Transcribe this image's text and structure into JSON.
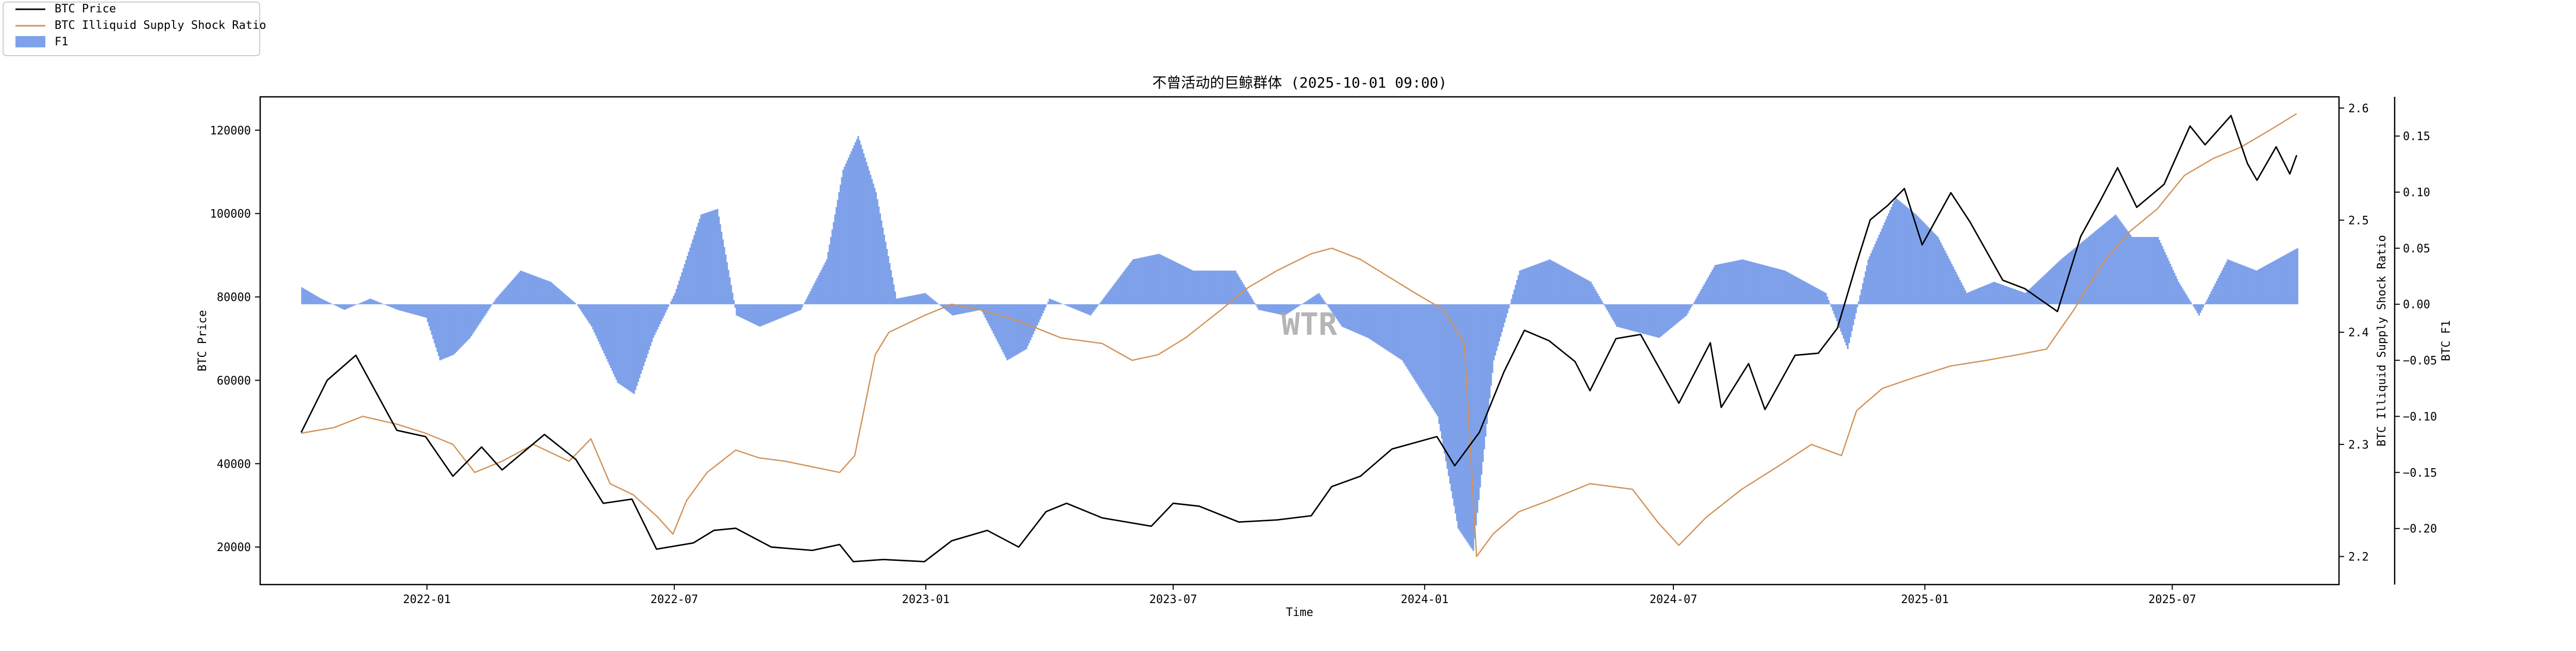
{
  "chart_data": {
    "type": "line",
    "title": "不曾活动的巨鲸群体 (2025-10-01 09:00)",
    "xlabel": "Time",
    "ylabel_left": "BTC Price",
    "ylabel_right1": "BTC Illiquid Supply Shock Ratio",
    "ylabel_right2": "BTC F1",
    "watermark": "WTR",
    "x_ticks": [
      "2022-01",
      "2022-07",
      "2023-01",
      "2023-07",
      "2024-01",
      "2024-07",
      "2025-01",
      "2025-07"
    ],
    "x_range": [
      "2021-09-01",
      "2025-10-31"
    ],
    "y_left": {
      "range": [
        11000,
        128000
      ],
      "ticks": [
        20000,
        40000,
        60000,
        80000,
        100000,
        120000
      ],
      "tick_labels": [
        "20000",
        "40000",
        "60000",
        "80000",
        "100000",
        "120000"
      ]
    },
    "y_right1": {
      "range": [
        2.175,
        2.61
      ],
      "ticks": [
        2.2,
        2.3,
        2.4,
        2.5,
        2.6
      ],
      "tick_labels": [
        "2.2",
        "2.3",
        "2.4",
        "2.5",
        "2.6"
      ]
    },
    "y_right2": {
      "range": [
        -0.25,
        0.185
      ],
      "ticks": [
        -0.2,
        -0.15,
        -0.1,
        -0.05,
        0.0,
        0.05,
        0.1,
        0.15
      ],
      "tick_labels": [
        "−0.20",
        "−0.15",
        "−0.10",
        "−0.05",
        "0.00",
        "0.05",
        "0.10",
        "0.15"
      ]
    },
    "legend": {
      "placement": "top-left",
      "entries": [
        {
          "label": "BTC Price",
          "kind": "line"
        },
        {
          "label": "BTC Illiquid Supply Shock Ratio",
          "kind": "line"
        },
        {
          "label": "F1",
          "kind": "patch"
        }
      ]
    },
    "colors": {
      "price": "#000000",
      "ratio": "#d2935a",
      "f1": "#7ea1ea"
    },
    "series": [
      {
        "name": "BTC Price",
        "axis": "left",
        "points": [
          [
            "2021-10-01",
            47500
          ],
          [
            "2021-10-20",
            60000
          ],
          [
            "2021-11-10",
            66000
          ],
          [
            "2021-11-25",
            57000
          ],
          [
            "2021-12-10",
            48000
          ],
          [
            "2021-12-31",
            46500
          ],
          [
            "2022-01-20",
            37000
          ],
          [
            "2022-02-10",
            44000
          ],
          [
            "2022-02-25",
            38500
          ],
          [
            "2022-03-28",
            47000
          ],
          [
            "2022-04-20",
            41000
          ],
          [
            "2022-05-10",
            30500
          ],
          [
            "2022-05-31",
            31500
          ],
          [
            "2022-06-18",
            19500
          ],
          [
            "2022-07-15",
            21000
          ],
          [
            "2022-07-30",
            24000
          ],
          [
            "2022-08-15",
            24500
          ],
          [
            "2022-09-10",
            20000
          ],
          [
            "2022-10-10",
            19200
          ],
          [
            "2022-10-30",
            20600
          ],
          [
            "2022-11-09",
            16500
          ],
          [
            "2022-12-01",
            17000
          ],
          [
            "2022-12-31",
            16500
          ],
          [
            "2023-01-20",
            21500
          ],
          [
            "2023-02-15",
            24000
          ],
          [
            "2023-03-10",
            20000
          ],
          [
            "2023-03-30",
            28500
          ],
          [
            "2023-04-14",
            30500
          ],
          [
            "2023-05-10",
            27000
          ],
          [
            "2023-06-15",
            25000
          ],
          [
            "2023-07-01",
            30500
          ],
          [
            "2023-07-20",
            29800
          ],
          [
            "2023-08-18",
            26000
          ],
          [
            "2023-09-15",
            26500
          ],
          [
            "2023-10-10",
            27500
          ],
          [
            "2023-10-25",
            34500
          ],
          [
            "2023-11-15",
            37000
          ],
          [
            "2023-12-08",
            43500
          ],
          [
            "2024-01-10",
            46500
          ],
          [
            "2024-01-23",
            39500
          ],
          [
            "2024-02-10",
            47500
          ],
          [
            "2024-02-28",
            62000
          ],
          [
            "2024-03-14",
            72000
          ],
          [
            "2024-04-01",
            69500
          ],
          [
            "2024-04-20",
            64500
          ],
          [
            "2024-05-01",
            57500
          ],
          [
            "2024-05-20",
            70000
          ],
          [
            "2024-06-07",
            71000
          ],
          [
            "2024-07-05",
            54500
          ],
          [
            "2024-07-28",
            69000
          ],
          [
            "2024-08-05",
            53500
          ],
          [
            "2024-08-25",
            64000
          ],
          [
            "2024-09-06",
            53000
          ],
          [
            "2024-09-28",
            66000
          ],
          [
            "2024-10-15",
            66500
          ],
          [
            "2024-10-29",
            72500
          ],
          [
            "2024-11-12",
            88000
          ],
          [
            "2024-11-22",
            98500
          ],
          [
            "2024-12-05",
            102000
          ],
          [
            "2024-12-17",
            106000
          ],
          [
            "2024-12-30",
            92500
          ],
          [
            "2025-01-20",
            105000
          ],
          [
            "2025-02-03",
            98000
          ],
          [
            "2025-02-27",
            84000
          ],
          [
            "2025-03-15",
            82000
          ],
          [
            "2025-04-08",
            76500
          ],
          [
            "2025-04-25",
            94500
          ],
          [
            "2025-05-10",
            103500
          ],
          [
            "2025-05-22",
            111000
          ],
          [
            "2025-06-05",
            101500
          ],
          [
            "2025-06-25",
            107000
          ],
          [
            "2025-07-14",
            121000
          ],
          [
            "2025-07-25",
            116500
          ],
          [
            "2025-08-13",
            123500
          ],
          [
            "2025-08-25",
            112000
          ],
          [
            "2025-09-01",
            108000
          ],
          [
            "2025-09-15",
            116000
          ],
          [
            "2025-09-25",
            109500
          ],
          [
            "2025-09-30",
            114000
          ]
        ]
      },
      {
        "name": "BTC Illiquid Supply Shock Ratio",
        "axis": "right1",
        "points": [
          [
            "2021-10-01",
            2.31
          ],
          [
            "2021-10-25",
            2.315
          ],
          [
            "2021-11-15",
            2.325
          ],
          [
            "2021-12-10",
            2.318
          ],
          [
            "2021-12-31",
            2.31
          ],
          [
            "2022-01-20",
            2.3
          ],
          [
            "2022-02-05",
            2.275
          ],
          [
            "2022-02-25",
            2.285
          ],
          [
            "2022-03-20",
            2.3
          ],
          [
            "2022-04-15",
            2.285
          ],
          [
            "2022-05-01",
            2.305
          ],
          [
            "2022-05-15",
            2.265
          ],
          [
            "2022-06-01",
            2.255
          ],
          [
            "2022-06-19",
            2.235
          ],
          [
            "2022-06-30",
            2.22
          ],
          [
            "2022-07-10",
            2.25
          ],
          [
            "2022-07-25",
            2.275
          ],
          [
            "2022-08-15",
            2.295
          ],
          [
            "2022-09-01",
            2.288
          ],
          [
            "2022-09-20",
            2.285
          ],
          [
            "2022-10-10",
            2.28
          ],
          [
            "2022-10-30",
            2.275
          ],
          [
            "2022-11-10",
            2.29
          ],
          [
            "2022-11-25",
            2.38
          ],
          [
            "2022-12-05",
            2.4
          ],
          [
            "2022-12-31",
            2.415
          ],
          [
            "2023-01-20",
            2.425
          ],
          [
            "2023-02-10",
            2.42
          ],
          [
            "2023-03-10",
            2.41
          ],
          [
            "2023-04-10",
            2.395
          ],
          [
            "2023-05-10",
            2.39
          ],
          [
            "2023-06-01",
            2.375
          ],
          [
            "2023-06-20",
            2.38
          ],
          [
            "2023-07-10",
            2.395
          ],
          [
            "2023-08-05",
            2.42
          ],
          [
            "2023-08-25",
            2.44
          ],
          [
            "2023-09-15",
            2.455
          ],
          [
            "2023-10-10",
            2.47
          ],
          [
            "2023-10-25",
            2.475
          ],
          [
            "2023-11-15",
            2.465
          ],
          [
            "2023-12-05",
            2.45
          ],
          [
            "2023-12-25",
            2.435
          ],
          [
            "2024-01-15",
            2.42
          ],
          [
            "2024-01-30",
            2.39
          ],
          [
            "2024-02-08",
            2.2
          ],
          [
            "2024-02-20",
            2.22
          ],
          [
            "2024-03-10",
            2.24
          ],
          [
            "2024-04-01",
            2.25
          ],
          [
            "2024-05-01",
            2.265
          ],
          [
            "2024-06-01",
            2.26
          ],
          [
            "2024-06-20",
            2.23
          ],
          [
            "2024-07-05",
            2.21
          ],
          [
            "2024-07-25",
            2.235
          ],
          [
            "2024-08-20",
            2.26
          ],
          [
            "2024-09-15",
            2.28
          ],
          [
            "2024-10-10",
            2.3
          ],
          [
            "2024-11-01",
            2.29
          ],
          [
            "2024-11-12",
            2.33
          ],
          [
            "2024-12-01",
            2.35
          ],
          [
            "2024-12-25",
            2.36
          ],
          [
            "2025-01-20",
            2.37
          ],
          [
            "2025-02-15",
            2.375
          ],
          [
            "2025-03-10",
            2.38
          ],
          [
            "2025-03-31",
            2.385
          ],
          [
            "2025-04-20",
            2.42
          ],
          [
            "2025-05-10",
            2.46
          ],
          [
            "2025-05-31",
            2.49
          ],
          [
            "2025-06-20",
            2.51
          ],
          [
            "2025-07-10",
            2.54
          ],
          [
            "2025-07-31",
            2.555
          ],
          [
            "2025-08-20",
            2.565
          ],
          [
            "2025-09-10",
            2.58
          ],
          [
            "2025-09-30",
            2.595
          ]
        ]
      },
      {
        "name": "F1",
        "axis": "right2",
        "type": "area",
        "points": [
          [
            "2021-10-01",
            0.015
          ],
          [
            "2021-10-15",
            0.005
          ],
          [
            "2021-11-01",
            -0.005
          ],
          [
            "2021-11-20",
            0.005
          ],
          [
            "2021-12-10",
            -0.005
          ],
          [
            "2021-12-31",
            -0.012
          ],
          [
            "2022-01-10",
            -0.05
          ],
          [
            "2022-01-20",
            -0.045
          ],
          [
            "2022-02-01",
            -0.03
          ],
          [
            "2022-02-20",
            0.005
          ],
          [
            "2022-03-10",
            0.03
          ],
          [
            "2022-04-01",
            0.02
          ],
          [
            "2022-04-20",
            0.0
          ],
          [
            "2022-05-01",
            -0.02
          ],
          [
            "2022-05-20",
            -0.07
          ],
          [
            "2022-06-01",
            -0.08
          ],
          [
            "2022-06-15",
            -0.03
          ],
          [
            "2022-07-01",
            0.01
          ],
          [
            "2022-07-20",
            0.08
          ],
          [
            "2022-08-01",
            0.085
          ],
          [
            "2022-08-15",
            -0.01
          ],
          [
            "2022-09-01",
            -0.02
          ],
          [
            "2022-10-01",
            -0.005
          ],
          [
            "2022-10-20",
            0.04
          ],
          [
            "2022-11-01",
            0.12
          ],
          [
            "2022-11-12",
            0.15
          ],
          [
            "2022-11-25",
            0.1
          ],
          [
            "2022-12-10",
            0.005
          ],
          [
            "2022-12-31",
            0.01
          ],
          [
            "2023-01-20",
            -0.01
          ],
          [
            "2023-02-10",
            -0.005
          ],
          [
            "2023-03-01",
            -0.05
          ],
          [
            "2023-03-15",
            -0.04
          ],
          [
            "2023-04-01",
            0.005
          ],
          [
            "2023-05-01",
            -0.01
          ],
          [
            "2023-06-01",
            0.04
          ],
          [
            "2023-06-20",
            0.045
          ],
          [
            "2023-07-15",
            0.03
          ],
          [
            "2023-08-15",
            0.03
          ],
          [
            "2023-09-01",
            -0.005
          ],
          [
            "2023-09-20",
            -0.01
          ],
          [
            "2023-10-15",
            0.01
          ],
          [
            "2023-11-01",
            -0.02
          ],
          [
            "2023-11-20",
            -0.03
          ],
          [
            "2023-12-15",
            -0.05
          ],
          [
            "2024-01-10",
            -0.1
          ],
          [
            "2024-01-25",
            -0.2
          ],
          [
            "2024-02-05",
            -0.22
          ],
          [
            "2024-02-20",
            -0.05
          ],
          [
            "2024-03-10",
            0.03
          ],
          [
            "2024-04-01",
            0.04
          ],
          [
            "2024-05-01",
            0.02
          ],
          [
            "2024-05-20",
            -0.02
          ],
          [
            "2024-06-20",
            -0.03
          ],
          [
            "2024-07-10",
            -0.01
          ],
          [
            "2024-07-31",
            0.035
          ],
          [
            "2024-08-20",
            0.04
          ],
          [
            "2024-09-20",
            0.03
          ],
          [
            "2024-10-20",
            0.01
          ],
          [
            "2024-11-05",
            -0.04
          ],
          [
            "2024-11-20",
            0.04
          ],
          [
            "2024-12-10",
            0.095
          ],
          [
            "2024-12-25",
            0.08
          ],
          [
            "2025-01-10",
            0.06
          ],
          [
            "2025-01-31",
            0.01
          ],
          [
            "2025-02-20",
            0.02
          ],
          [
            "2025-03-15",
            0.01
          ],
          [
            "2025-04-10",
            0.04
          ],
          [
            "2025-04-30",
            0.06
          ],
          [
            "2025-05-20",
            0.08
          ],
          [
            "2025-06-01",
            0.06
          ],
          [
            "2025-06-20",
            0.06
          ],
          [
            "2025-07-05",
            0.02
          ],
          [
            "2025-07-20",
            -0.01
          ],
          [
            "2025-08-10",
            0.04
          ],
          [
            "2025-08-31",
            0.03
          ],
          [
            "2025-09-15",
            0.04
          ],
          [
            "2025-09-30",
            0.05
          ]
        ]
      }
    ]
  }
}
